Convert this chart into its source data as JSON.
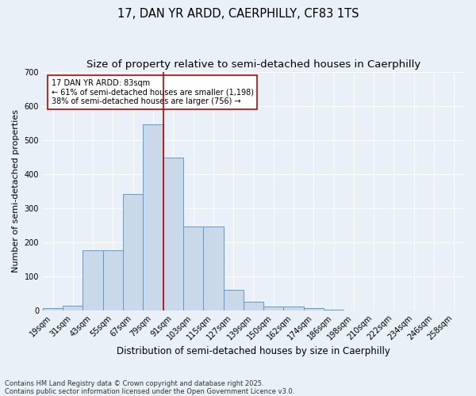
{
  "title": "17, DAN YR ARDD, CAERPHILLY, CF83 1TS",
  "subtitle": "Size of property relative to semi-detached houses in Caerphilly",
  "xlabel": "Distribution of semi-detached houses by size in Caerphilly",
  "ylabel": "Number of semi-detached properties",
  "bin_labels": [
    "19sqm",
    "31sqm",
    "43sqm",
    "55sqm",
    "67sqm",
    "79sqm",
    "91sqm",
    "103sqm",
    "115sqm",
    "127sqm",
    "139sqm",
    "150sqm",
    "162sqm",
    "174sqm",
    "186sqm",
    "198sqm",
    "210sqm",
    "222sqm",
    "234sqm",
    "246sqm",
    "258sqm"
  ],
  "bar_values": [
    5,
    12,
    175,
    175,
    340,
    545,
    448,
    245,
    245,
    60,
    25,
    10,
    10,
    5,
    2,
    0,
    0,
    0,
    0,
    0,
    0
  ],
  "bar_color": "#c9d9ea",
  "bar_edge_color": "#5b9bd5",
  "vline_x": 5.5,
  "vline_color": "#c00000",
  "annotation_text": "17 DAN YR ARDD: 83sqm\n← 61% of semi-detached houses are smaller (1,198)\n38% of semi-detached houses are larger (756) →",
  "annotation_box_color": "#ffffff",
  "annotation_box_edge": "#c00000",
  "footer_text": "Contains HM Land Registry data © Crown copyright and database right 2025.\nContains public sector information licensed under the Open Government Licence v3.0.",
  "ylim": [
    0,
    700
  ],
  "background_color": "#eaf0f8",
  "grid_color": "#ffffff",
  "title_fontsize": 10.5,
  "xlabel_fontsize": 8.5,
  "ylabel_fontsize": 8,
  "tick_fontsize": 7,
  "footer_fontsize": 6
}
